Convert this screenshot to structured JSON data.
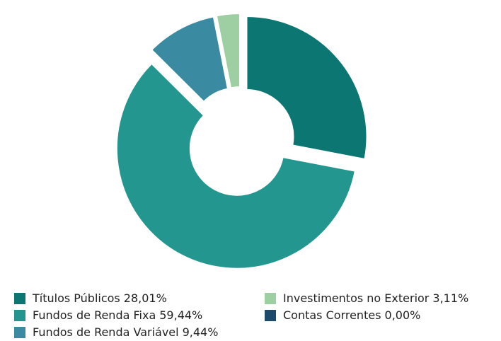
{
  "chart_data": {
    "type": "donut",
    "categories": [
      "Títulos Públicos",
      "Fundos de Renda Fixa",
      "Fundos de Renda Variável",
      "Investimentos no Exterior",
      "Contas Correntes"
    ],
    "values": [
      28.01,
      59.44,
      9.44,
      3.11,
      0.0
    ],
    "value_labels": [
      "28,01%",
      "59,44%",
      "9,44%",
      "3,11%",
      "0,00%"
    ],
    "colors": [
      "#0b7672",
      "#23978f",
      "#3a8ba1",
      "#9dcfa2",
      "#1c4a68"
    ]
  }
}
